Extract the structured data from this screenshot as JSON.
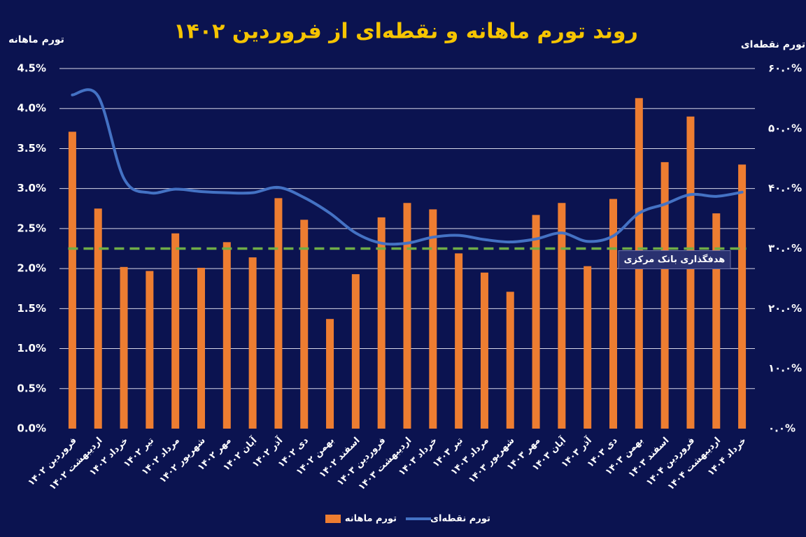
{
  "chart_data": {
    "type": "bar",
    "title": "روند تورم ماهانه و نقطه‌ای از فروردین ۱۴۰۲",
    "y_label": "تورم ماهانه",
    "y2_label": "تورم نقطه‌ای",
    "categories": [
      "فروردین ۱۴۰۲",
      "اردیبهشت ۱۴۰۲",
      "خرداد ۱۴۰۲",
      "تیر ۱۴۰۲",
      "مرداد ۱۴۰۲",
      "شهریور ۱۴۰۲",
      "مهر ۱۴۰۲",
      "آبان ۱۴۰۲",
      "آذر ۱۴۰۲",
      "دی ۱۴۰۲",
      "بهمن ۱۴۰۲",
      "اسفند ۱۴۰۲",
      "فروردین ۱۴۰۳",
      "اردیبهشت ۱۴۰۳",
      "خرداد ۱۴۰۳",
      "تیر ۱۴۰۳",
      "مرداد ۱۴۰۳",
      "شهریور ۱۴۰۳",
      "مهر ۱۴۰۳",
      "آبان ۱۴۰۳",
      "آذر ۱۴۰۳",
      "دی ۱۴۰۳",
      "بهمن ۱۴۰۳",
      "اسفند ۱۴۰۳",
      "فروردین ۱۴۰۴",
      "اردیبهشت ۱۴۰۴",
      "خرداد ۱۴۰۴"
    ],
    "series": [
      {
        "name": "تورم ماهانه",
        "type": "bar",
        "color": "#ed7d31",
        "axis": "y",
        "values": [
          3.71,
          2.75,
          2.02,
          1.97,
          2.44,
          2.01,
          2.33,
          2.14,
          2.88,
          2.61,
          1.37,
          1.93,
          2.64,
          2.82,
          2.74,
          2.19,
          1.95,
          1.71,
          2.67,
          2.82,
          2.03,
          2.87,
          4.13,
          3.33,
          3.9,
          2.69,
          3.3
        ]
      },
      {
        "name": "تورم نقطه‌ای",
        "type": "line",
        "color": "#4472c4",
        "axis": "y2",
        "values": [
          55.6,
          55.4,
          41.7,
          39.3,
          39.9,
          39.5,
          39.3,
          39.3,
          40.2,
          38.5,
          35.9,
          32.6,
          30.9,
          30.9,
          31.9,
          32.2,
          31.5,
          31.1,
          31.6,
          32.6,
          31.2,
          32.1,
          35.9,
          37.4,
          39.0,
          38.7,
          39.4
        ]
      }
    ],
    "target": {
      "label": "هدفگذاری بانک مرکزی",
      "value": 30,
      "axis": "y2",
      "color": "#70ad47"
    },
    "ylim": [
      0,
      4.5
    ],
    "yticks": [
      {
        "value": 0,
        "label": "0.0%"
      },
      {
        "value": 0.5,
        "label": "0.5%"
      },
      {
        "value": 1,
        "label": "1.0%"
      },
      {
        "value": 1.5,
        "label": "1.5%"
      },
      {
        "value": 2,
        "label": "2.0%"
      },
      {
        "value": 2.5,
        "label": "2.5%"
      },
      {
        "value": 3,
        "label": "3.0%"
      },
      {
        "value": 3.5,
        "label": "3.5%"
      },
      {
        "value": 4,
        "label": "4.0%"
      },
      {
        "value": 4.5,
        "label": "4.5%"
      }
    ],
    "y2lim": [
      0,
      60
    ],
    "y2ticks": [
      {
        "value": 0,
        "label": "۰.۰%"
      },
      {
        "value": 10,
        "label": "۱۰.۰%"
      },
      {
        "value": 20,
        "label": "۲۰.۰%"
      },
      {
        "value": 30,
        "label": "۳۰.۰%"
      },
      {
        "value": 40,
        "label": "۴۰.۰%"
      },
      {
        "value": 50,
        "label": "۵۰.۰%"
      },
      {
        "value": 60,
        "label": "۶۰.۰%"
      }
    ],
    "grid": true,
    "legend": "bottom"
  }
}
